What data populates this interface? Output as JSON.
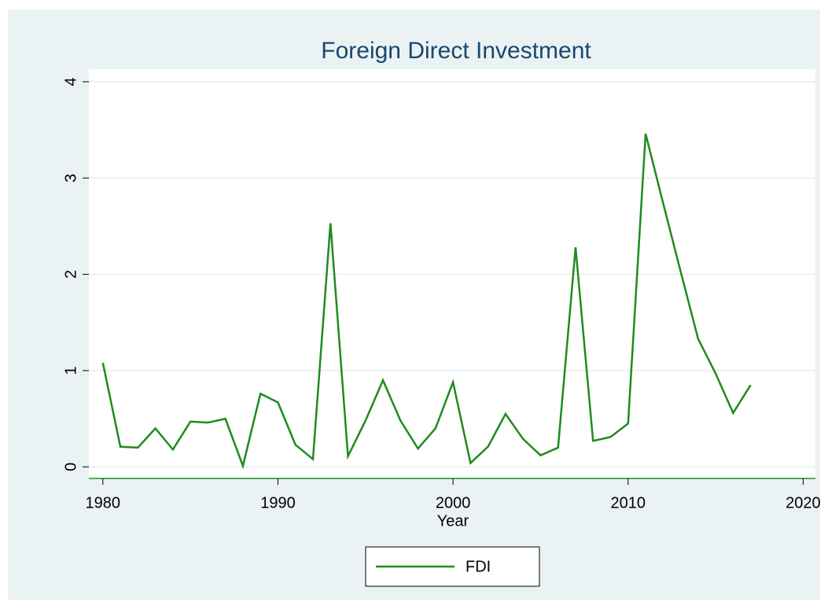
{
  "chart_data": {
    "type": "line",
    "title": "Foreign Direct Investment",
    "x_label": "Year",
    "x": [
      1980,
      1981,
      1982,
      1983,
      1984,
      1985,
      1986,
      1987,
      1988,
      1989,
      1990,
      1991,
      1992,
      1993,
      1994,
      1995,
      1996,
      1997,
      1998,
      1999,
      2000,
      2001,
      2002,
      2003,
      2004,
      2005,
      2006,
      2007,
      2008,
      2009,
      2010,
      2011,
      2012,
      2013,
      2014,
      2015,
      2016,
      2017
    ],
    "series": [
      {
        "name": "FDI",
        "color": "#1e8c1e",
        "values": [
          1.08,
          0.21,
          0.2,
          0.4,
          0.18,
          0.47,
          0.46,
          0.5,
          0.01,
          0.76,
          0.67,
          0.23,
          0.08,
          2.53,
          0.11,
          0.48,
          0.9,
          0.48,
          0.19,
          0.4,
          0.88,
          0.04,
          0.21,
          0.55,
          0.29,
          0.12,
          0.2,
          2.28,
          0.27,
          0.31,
          0.45,
          3.46,
          2.74,
          2.03,
          1.33,
          0.97,
          0.56,
          0.85
        ]
      }
    ],
    "xlim": [
      1979.2,
      2020.7
    ],
    "xticks": [
      1980,
      1990,
      2000,
      2010,
      2020
    ],
    "ylim": [
      -0.12,
      4.13
    ],
    "yticks": [
      0,
      1,
      2,
      3,
      4
    ],
    "grid": true,
    "legend": "bottom"
  }
}
